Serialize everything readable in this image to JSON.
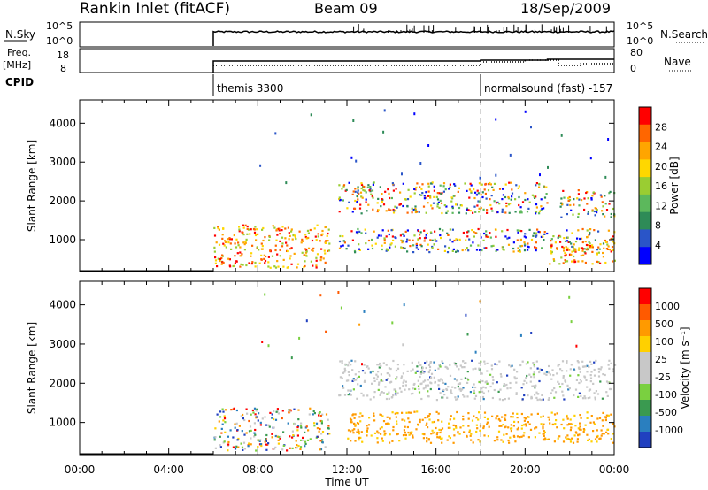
{
  "header": {
    "station": "Rankin Inlet (fitACF)",
    "beam": "Beam 09",
    "date": "18/Sep/2009"
  },
  "noise_panel": {
    "left_label": "N.Sky",
    "right_label": "N.Search",
    "ticks_left": [
      "10^5",
      "10^0"
    ],
    "ticks_right": [
      "10^5",
      "10^0"
    ]
  },
  "freq_panel": {
    "left_label_1": "Freq.",
    "left_label_2": "[MHz]",
    "right_label": "Nave",
    "ticks_left": [
      "18",
      "8"
    ],
    "ticks_right": [
      "80",
      "0"
    ]
  },
  "cpid": {
    "label": "CPID",
    "segments": [
      {
        "text": "themis 3300",
        "start_hour": 6.0
      },
      {
        "text": "normalsound (fast) -157",
        "start_hour": 18.0
      }
    ]
  },
  "colors": {
    "power": [
      "#0000ff",
      "#2a55c8",
      "#2e8b57",
      "#5cb85c",
      "#9acd32",
      "#ffd700",
      "#ffa500",
      "#ff6600",
      "#ff0000"
    ],
    "velocity": [
      "#2040c0",
      "#2a7fbf",
      "#3a9a50",
      "#7ad040",
      "#c8c8c8",
      "#c8c8c8",
      "#ffd000",
      "#ff9a00",
      "#ff5a00",
      "#ff0000"
    ]
  },
  "chart_data": [
    {
      "type": "heatmap",
      "name": "power",
      "ylabel": "Slant Range [km]",
      "colorbar_label": "Power [dB]",
      "colorbar_ticks": [
        "28",
        "24",
        "20",
        "16",
        "12",
        "8",
        "4"
      ],
      "x_ticks": [
        "00:00",
        "04:00",
        "08:00",
        "12:00",
        "16:00",
        "20:00",
        "00:00"
      ],
      "y_ticks": [
        "1000",
        "2000",
        "3000",
        "4000"
      ],
      "xlim": [
        0,
        24
      ],
      "ylim": [
        180,
        4600
      ],
      "observation_start_hour": 6.0,
      "mode_change_hour": 18.0,
      "scatter_regions": [
        {
          "t0": 6.0,
          "t1": 11.2,
          "r0": 300,
          "r1": 1400,
          "level": "strong"
        },
        {
          "t0": 11.6,
          "t1": 21.0,
          "r0": 1700,
          "r1": 2500,
          "level": "medium"
        },
        {
          "t0": 11.6,
          "t1": 24.0,
          "r0": 700,
          "r1": 1300,
          "level": "medium"
        },
        {
          "t0": 21.0,
          "t1": 24.0,
          "r0": 400,
          "r1": 1000,
          "level": "strong"
        },
        {
          "t0": 21.5,
          "t1": 24.0,
          "r0": 1600,
          "r1": 2300,
          "level": "medium"
        }
      ]
    },
    {
      "type": "heatmap",
      "name": "velocity",
      "ylabel": "Slant Range [km]",
      "colorbar_label": "Velocity [m s⁻¹]",
      "colorbar_ticks": [
        "1000",
        "500",
        "100",
        "25",
        "-25",
        "-100",
        "-500",
        "-1000"
      ],
      "x_ticks": [
        "00:00",
        "04:00",
        "08:00",
        "12:00",
        "16:00",
        "20:00",
        "00:00"
      ],
      "y_ticks": [
        "1000",
        "2000",
        "3000",
        "4000"
      ],
      "xlim": [
        0,
        24
      ],
      "ylim": [
        180,
        4600
      ],
      "xlabel": "Time UT",
      "observation_start_hour": 6.0,
      "mode_change_hour": 18.0,
      "scatter_regions": [
        {
          "t0": 6.0,
          "t1": 11.2,
          "r0": 300,
          "r1": 1400,
          "level": "mixed"
        },
        {
          "t0": 11.6,
          "t1": 24.0,
          "r0": 1600,
          "r1": 2600,
          "level": "ground"
        },
        {
          "t0": 12.0,
          "t1": 24.0,
          "r0": 500,
          "r1": 1300,
          "level": "away"
        }
      ]
    }
  ]
}
